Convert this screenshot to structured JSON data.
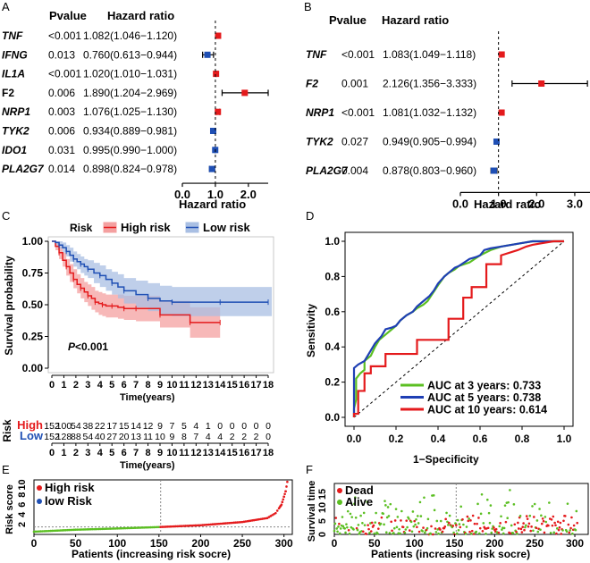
{
  "figure": {
    "panels": [
      "A",
      "B",
      "C",
      "D",
      "E",
      "F"
    ]
  },
  "chart_data": [
    {
      "id": "A",
      "type": "forest",
      "col_pvalue": "Pvalue",
      "col_hr": "Hazard ratio",
      "xlabel": "Hazard ratio",
      "xticks": [
        "0.0",
        "1.0",
        "2.0"
      ],
      "xlim": [
        0,
        2.6
      ],
      "ref_line": 1.0,
      "rows": [
        {
          "gene": "TNF",
          "italic": true,
          "pvalue": "<0.001",
          "hr_text": "1.082(1.046−1.120)",
          "hr": 1.082,
          "low": 1.046,
          "high": 1.12
        },
        {
          "gene": "IFNG",
          "italic": true,
          "pvalue": "0.013",
          "hr_text": "0.760(0.613−0.944)",
          "hr": 0.76,
          "low": 0.613,
          "high": 0.944
        },
        {
          "gene": "IL1A",
          "italic": true,
          "pvalue": "<0.001",
          "hr_text": "1.020(1.010−1.031)",
          "hr": 1.02,
          "low": 1.01,
          "high": 1.031
        },
        {
          "gene": "F2",
          "italic": false,
          "pvalue": "0.006",
          "hr_text": "1.890(1.204−2.969)",
          "hr": 1.89,
          "low": 1.204,
          "high": 2.969
        },
        {
          "gene": "NRP1",
          "italic": true,
          "pvalue": "0.003",
          "hr_text": "1.076(1.025−1.130)",
          "hr": 1.076,
          "low": 1.025,
          "high": 1.13
        },
        {
          "gene": "TYK2",
          "italic": true,
          "pvalue": "0.006",
          "hr_text": "0.934(0.889−0.981)",
          "hr": 0.934,
          "low": 0.889,
          "high": 0.981
        },
        {
          "gene": "IDO1",
          "italic": true,
          "pvalue": "0.031",
          "hr_text": "0.995(0.990−1.000)",
          "hr": 0.995,
          "low": 0.99,
          "high": 1.0
        },
        {
          "gene": "PLA2G7",
          "italic": true,
          "pvalue": "0.014",
          "hr_text": "0.898(0.824−0.978)",
          "hr": 0.898,
          "low": 0.824,
          "high": 0.978
        }
      ],
      "colors": {
        "risk": "#e41a1c",
        "protective": "#1f4fb4"
      }
    },
    {
      "id": "B",
      "type": "forest",
      "col_pvalue": "Pvalue",
      "col_hr": "Hazard ratio",
      "xlabel": "Hazard ratio",
      "xticks": [
        "0.0",
        "1.0",
        "2.0",
        "3.0"
      ],
      "xlim": [
        0,
        3.4
      ],
      "ref_line": 1.0,
      "rows": [
        {
          "gene": "TNF",
          "italic": true,
          "pvalue": "<0.001",
          "hr_text": "1.083(1.049−1.118)",
          "hr": 1.083,
          "low": 1.049,
          "high": 1.118
        },
        {
          "gene": "F2",
          "italic": true,
          "pvalue": "0.001",
          "hr_text": "2.126(1.356−3.333)",
          "hr": 2.126,
          "low": 1.356,
          "high": 3.333
        },
        {
          "gene": "NRP1",
          "italic": true,
          "pvalue": "<0.001",
          "hr_text": "1.081(1.032−1.132)",
          "hr": 1.081,
          "low": 1.032,
          "high": 1.132
        },
        {
          "gene": "TYK2",
          "italic": true,
          "pvalue": "0.027",
          "hr_text": "0.949(0.905−0.994)",
          "hr": 0.949,
          "low": 0.905,
          "high": 0.994
        },
        {
          "gene": "PLA2G7",
          "italic": true,
          "pvalue": "0.004",
          "hr_text": "0.878(0.803−0.960)",
          "hr": 0.878,
          "low": 0.803,
          "high": 0.96
        }
      ],
      "colors": {
        "risk": "#e41a1c",
        "protective": "#1f4fb4"
      }
    },
    {
      "id": "C",
      "type": "line",
      "subtype": "kaplan-meier",
      "legend_title": "Risk",
      "xlabel": "Time(years)",
      "ylabel": "Survival probability",
      "pvalue_label": "P",
      "pvalue_value": "<0.001",
      "xlim": [
        0,
        18
      ],
      "ylim": [
        0,
        1
      ],
      "xticks": [
        "0",
        "1",
        "2",
        "3",
        "4",
        "5",
        "6",
        "7",
        "8",
        "9",
        "10",
        "11",
        "12",
        "13",
        "14",
        "15",
        "16",
        "17",
        "18"
      ],
      "yticks": [
        "0.00",
        "0.25",
        "0.50",
        "0.75",
        "1.00"
      ],
      "series": [
        {
          "name": "High risk",
          "color": "#e41a1c",
          "fill": "#f4a0a0",
          "x": [
            0,
            0.3,
            0.6,
            0.9,
            1.2,
            1.5,
            1.8,
            2.1,
            2.4,
            2.7,
            3.0,
            3.3,
            3.6,
            3.9,
            4.2,
            4.5,
            5.0,
            5.5,
            6.0,
            6.5,
            7.0,
            8.5,
            9.0,
            11.0,
            11.5,
            13.0,
            14.0
          ],
          "y": [
            1.0,
            0.96,
            0.91,
            0.85,
            0.8,
            0.75,
            0.7,
            0.66,
            0.63,
            0.6,
            0.57,
            0.55,
            0.52,
            0.51,
            0.5,
            0.49,
            0.49,
            0.48,
            0.47,
            0.47,
            0.47,
            0.47,
            0.42,
            0.42,
            0.36,
            0.36,
            0.36
          ],
          "low": [
            1.0,
            0.93,
            0.86,
            0.8,
            0.73,
            0.68,
            0.63,
            0.59,
            0.55,
            0.52,
            0.49,
            0.46,
            0.44,
            0.42,
            0.41,
            0.4,
            0.4,
            0.39,
            0.38,
            0.38,
            0.37,
            0.37,
            0.32,
            0.32,
            0.24,
            0.24,
            0.24
          ],
          "high": [
            1.0,
            0.99,
            0.96,
            0.91,
            0.86,
            0.82,
            0.78,
            0.74,
            0.71,
            0.68,
            0.66,
            0.64,
            0.61,
            0.6,
            0.59,
            0.58,
            0.58,
            0.58,
            0.57,
            0.57,
            0.57,
            0.57,
            0.53,
            0.53,
            0.48,
            0.48,
            0.48
          ]
        },
        {
          "name": "Low risk",
          "color": "#1f4fb4",
          "fill": "#a9bfe3",
          "x": [
            0,
            0.3,
            0.6,
            0.9,
            1.2,
            1.5,
            1.8,
            2.1,
            2.4,
            2.7,
            3.0,
            3.5,
            4.0,
            4.5,
            5.0,
            5.5,
            6.0,
            7.0,
            8.0,
            9.0,
            10.0,
            12.0,
            14.0,
            17.0,
            18.5
          ],
          "y": [
            1.0,
            0.99,
            0.97,
            0.95,
            0.92,
            0.89,
            0.86,
            0.84,
            0.82,
            0.8,
            0.78,
            0.75,
            0.73,
            0.7,
            0.67,
            0.64,
            0.61,
            0.58,
            0.55,
            0.53,
            0.52,
            0.52,
            0.52,
            0.52,
            0.52
          ],
          "low": [
            1.0,
            0.97,
            0.94,
            0.91,
            0.88,
            0.84,
            0.8,
            0.78,
            0.75,
            0.73,
            0.71,
            0.67,
            0.64,
            0.61,
            0.58,
            0.55,
            0.51,
            0.48,
            0.45,
            0.42,
            0.41,
            0.41,
            0.41,
            0.41,
            0.41
          ],
          "high": [
            1.0,
            1.0,
            1.0,
            0.99,
            0.97,
            0.95,
            0.92,
            0.9,
            0.88,
            0.86,
            0.85,
            0.83,
            0.81,
            0.78,
            0.76,
            0.74,
            0.71,
            0.69,
            0.67,
            0.65,
            0.64,
            0.64,
            0.64,
            0.64,
            0.64
          ]
        }
      ],
      "risk_table": {
        "title": "Risk",
        "xlabel": "Time(years)",
        "xticks": [
          "0",
          "1",
          "2",
          "3",
          "4",
          "5",
          "6",
          "7",
          "8",
          "9",
          "10",
          "11",
          "12",
          "13",
          "14",
          "15",
          "16",
          "17",
          "18"
        ],
        "rows": [
          {
            "label": "High",
            "color": "#e41a1c",
            "counts": [
              "152",
              "100",
              "54",
              "38",
              "22",
              "17",
              "15",
              "14",
              "12",
              "9",
              "7",
              "5",
              "4",
              "1",
              "0",
              "0",
              "0",
              "0",
              "0"
            ]
          },
          {
            "label": "Low",
            "color": "#1f4fb4",
            "counts": [
              "152",
              "128",
              "88",
              "54",
              "40",
              "27",
              "20",
              "13",
              "11",
              "10",
              "9",
              "8",
              "7",
              "4",
              "4",
              "2",
              "2",
              "2",
              "0"
            ]
          }
        ]
      }
    },
    {
      "id": "D",
      "type": "line",
      "subtype": "roc",
      "xlabel": "1−Specificity",
      "ylabel": "Sensitivity",
      "xlim": [
        0,
        1
      ],
      "ylim": [
        0,
        1
      ],
      "xticks": [
        "0.0",
        "0.2",
        "0.4",
        "0.6",
        "0.8",
        "1.0"
      ],
      "yticks": [
        "0.0",
        "0.2",
        "0.4",
        "0.6",
        "0.8",
        "1.0"
      ],
      "series": [
        {
          "name": "AUC at 3 years: 0.733",
          "color": "#5bbf22",
          "x": [
            0,
            0,
            0.01,
            0.01,
            0.03,
            0.05,
            0.05,
            0.08,
            0.1,
            0.12,
            0.15,
            0.18,
            0.2,
            0.22,
            0.25,
            0.28,
            0.3,
            0.33,
            0.35,
            0.4,
            0.43,
            0.45,
            0.48,
            0.5,
            0.55,
            0.6,
            0.65,
            0.7,
            0.75,
            0.8,
            0.85,
            0.9,
            0.95,
            1.0
          ],
          "y": [
            0,
            0.05,
            0.1,
            0.22,
            0.25,
            0.27,
            0.32,
            0.35,
            0.4,
            0.44,
            0.47,
            0.5,
            0.52,
            0.55,
            0.58,
            0.6,
            0.62,
            0.64,
            0.66,
            0.75,
            0.8,
            0.82,
            0.84,
            0.86,
            0.88,
            0.92,
            0.95,
            0.97,
            0.98,
            0.99,
            1.0,
            1.0,
            1.0,
            1.0
          ]
        },
        {
          "name": "AUC at 5 years: 0.738",
          "color": "#1f3fb4",
          "x": [
            0,
            0,
            0.02,
            0.05,
            0.08,
            0.1,
            0.13,
            0.15,
            0.18,
            0.2,
            0.22,
            0.25,
            0.28,
            0.3,
            0.33,
            0.36,
            0.38,
            0.4,
            0.43,
            0.45,
            0.48,
            0.5,
            0.55,
            0.58,
            0.6,
            0.62,
            0.65,
            0.7,
            0.75,
            0.8,
            0.85,
            0.9,
            1.0
          ],
          "y": [
            0,
            0.28,
            0.3,
            0.32,
            0.38,
            0.42,
            0.46,
            0.5,
            0.51,
            0.52,
            0.55,
            0.58,
            0.6,
            0.63,
            0.66,
            0.69,
            0.72,
            0.76,
            0.8,
            0.82,
            0.85,
            0.86,
            0.9,
            0.91,
            0.92,
            0.95,
            0.96,
            0.97,
            0.98,
            0.99,
            1.0,
            1.0,
            1.0
          ]
        },
        {
          "name": "AUC at 10 years: 0.614",
          "color": "#e41a1c",
          "x": [
            0,
            0,
            0.02,
            0.02,
            0.05,
            0.05,
            0.08,
            0.08,
            0.15,
            0.15,
            0.3,
            0.3,
            0.45,
            0.45,
            0.5,
            0.52,
            0.52,
            0.56,
            0.56,
            0.6,
            0.63,
            0.63,
            0.7,
            0.7,
            0.78,
            0.82,
            0.85,
            0.9,
            0.95,
            1.0
          ],
          "y": [
            0,
            0.02,
            0.02,
            0.15,
            0.15,
            0.25,
            0.25,
            0.29,
            0.29,
            0.36,
            0.36,
            0.44,
            0.44,
            0.56,
            0.56,
            0.56,
            0.68,
            0.68,
            0.74,
            0.74,
            0.74,
            0.87,
            0.87,
            0.92,
            0.95,
            0.97,
            0.98,
            0.99,
            1.0,
            1.0
          ]
        }
      ]
    },
    {
      "id": "E",
      "type": "scatter",
      "subtype": "risk-score",
      "xlabel": "Patients (increasing risk socre)",
      "ylabel": "Risk score",
      "xticks": [
        "0",
        "50",
        "100",
        "150",
        "200",
        "250",
        "300"
      ],
      "yticks": [
        "2",
        "4",
        "6",
        "8",
        "10"
      ],
      "xlim": [
        0,
        310
      ],
      "ylim": [
        0,
        11
      ],
      "cutoff_index": 152,
      "cutoff_score": 1.5,
      "n_patients": 304,
      "legend": [
        {
          "label": "High risk",
          "color": "#e41a1c"
        },
        {
          "label": "low Risk",
          "color": "#1f4fb4"
        }
      ],
      "low_color": "#5bbf22",
      "high_color": "#e41a1c",
      "score_profile": {
        "index": [
          0,
          50,
          100,
          152,
          200,
          250,
          280,
          290,
          297,
          302,
          304
        ],
        "score": [
          0.55,
          0.95,
          1.2,
          1.5,
          1.85,
          2.5,
          3.3,
          4.3,
          6.0,
          8.7,
          10.6
        ]
      }
    },
    {
      "id": "F",
      "type": "scatter",
      "subtype": "survival-status",
      "xlabel": "Patients (increasing risk socre)",
      "ylabel": "Survival time",
      "xticks": [
        "0",
        "50",
        "100",
        "150",
        "200",
        "250",
        "300"
      ],
      "yticks": [
        "0",
        "5",
        "10",
        "15"
      ],
      "xlim": [
        0,
        310
      ],
      "ylim": [
        0,
        19
      ],
      "cutoff_index": 152,
      "n_patients": 304,
      "legend": [
        {
          "label": "Dead",
          "color": "#e41a1c"
        },
        {
          "label": "Alive",
          "color": "#5bbf22"
        }
      ]
    }
  ]
}
